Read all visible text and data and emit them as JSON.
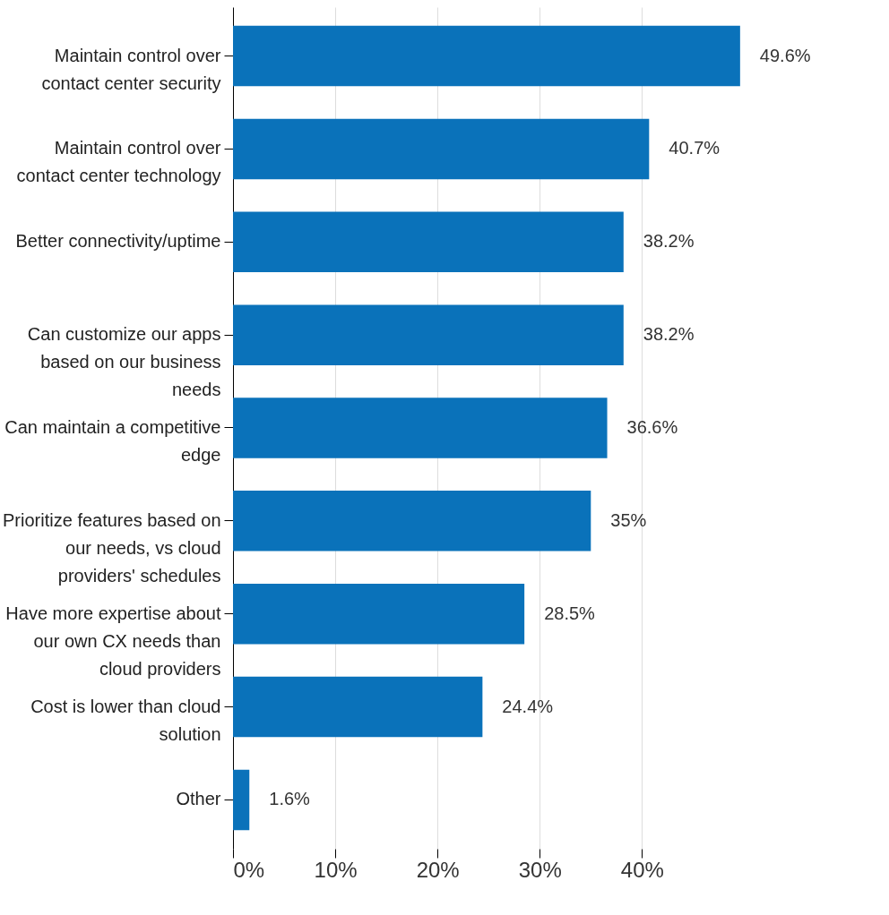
{
  "chart_data": {
    "type": "bar",
    "orientation": "horizontal",
    "categories": [
      "Maintain control over\ncontact center security",
      "Maintain control over\ncontact center technology",
      "Better connectivity/uptime",
      "Can customize our apps\nbased on our business\nneeds",
      "Can maintain a competitive\nedge",
      "Prioritize features based on\nour needs, vs cloud\nproviders' schedules",
      "Have more expertise about\nour own CX needs than\ncloud providers",
      "Cost is lower than cloud\nsolution",
      "Other"
    ],
    "values": [
      49.6,
      40.7,
      38.2,
      38.2,
      36.6,
      35,
      28.5,
      24.4,
      1.6
    ],
    "value_labels": [
      "49.6%",
      "40.7%",
      "38.2%",
      "38.2%",
      "36.6%",
      "35%",
      "28.5%",
      "24.4%",
      "1.6%"
    ],
    "color": "#0a72ba",
    "xlim": [
      0,
      49.7
    ],
    "xticks": [
      {
        "value": 0,
        "label": "0%"
      },
      {
        "value": 10,
        "label": "10%"
      },
      {
        "value": 20,
        "label": "20%"
      },
      {
        "value": 30,
        "label": "30%"
      },
      {
        "value": 40,
        "label": "40%"
      }
    ],
    "grid": "x"
  }
}
